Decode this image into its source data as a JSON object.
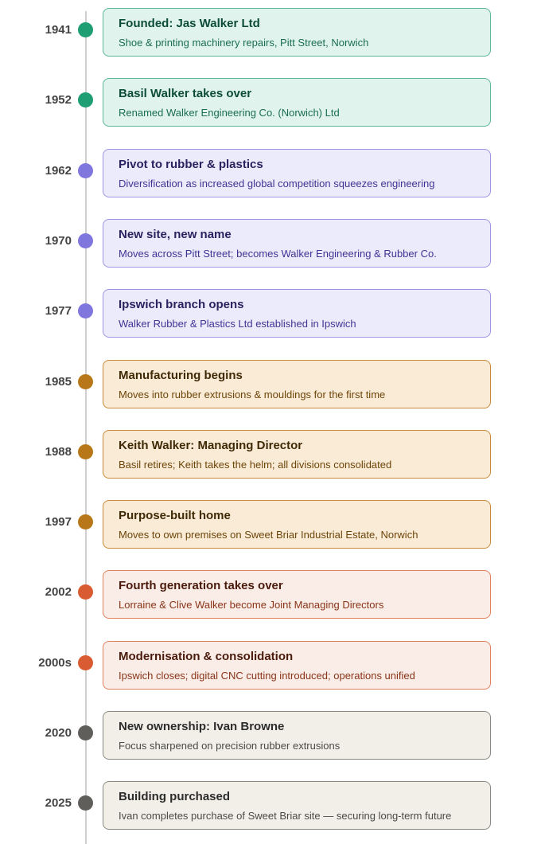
{
  "themes": {
    "green": {
      "fill": "#e0f3ec",
      "border": "#5db896",
      "title": "#0c4c38",
      "sub": "#1a6e52",
      "dot": "#1f9e74"
    },
    "purple": {
      "fill": "#ecebfb",
      "border": "#9d95e3",
      "title": "#2a2260",
      "sub": "#3f3494",
      "dot": "#7f77dd"
    },
    "amber": {
      "fill": "#faebd7",
      "border": "#c98a3a",
      "title": "#3f2a06",
      "sub": "#6e4508",
      "dot": "#b87718"
    },
    "red": {
      "fill": "#faece7",
      "border": "#e0815e",
      "title": "#4a1b0c",
      "sub": "#8a3418",
      "dot": "#d95b32"
    },
    "gray": {
      "fill": "#f1efe8",
      "border": "#8a8882",
      "title": "#2c2c2a",
      "sub": "#4a4a46",
      "dot": "#5f5e5a"
    }
  },
  "events": [
    {
      "year": "1941",
      "title": "Founded: Jas Walker Ltd",
      "desc": "Shoe & printing machinery repairs, Pitt Street, Norwich",
      "theme": "green"
    },
    {
      "year": "1952",
      "title": "Basil Walker takes over",
      "desc": "Renamed Walker Engineering Co. (Norwich) Ltd",
      "theme": "green"
    },
    {
      "year": "1962",
      "title": "Pivot to rubber & plastics",
      "desc": "Diversification as increased global competition squeezes engineering",
      "theme": "purple"
    },
    {
      "year": "1970",
      "title": "New site, new name",
      "desc": "Moves across Pitt Street; becomes Walker Engineering & Rubber Co.",
      "theme": "purple"
    },
    {
      "year": "1977",
      "title": "Ipswich branch opens",
      "desc": "Walker Rubber & Plastics Ltd established in Ipswich",
      "theme": "purple"
    },
    {
      "year": "1985",
      "title": "Manufacturing begins",
      "desc": "Moves into rubber extrusions & mouldings for the first time",
      "theme": "amber"
    },
    {
      "year": "1988",
      "title": "Keith Walker: Managing Director",
      "desc": "Basil retires; Keith takes the helm; all divisions consolidated",
      "theme": "amber"
    },
    {
      "year": "1997",
      "title": "Purpose-built home",
      "desc": "Moves to own premises on Sweet Briar Industrial Estate, Norwich",
      "theme": "amber"
    },
    {
      "year": "2002",
      "title": "Fourth generation takes over",
      "desc": "Lorraine & Clive Walker become Joint Managing Directors",
      "theme": "red"
    },
    {
      "year": "2000s",
      "title": "Modernisation & consolidation",
      "desc": "Ipswich closes; digital CNC cutting introduced; operations unified",
      "theme": "red"
    },
    {
      "year": "2020",
      "title": "New ownership: Ivan Browne",
      "desc": "Focus sharpened on precision rubber extrusions",
      "theme": "gray"
    },
    {
      "year": "2025",
      "title": "Building purchased",
      "desc": "Ivan completes purchase of Sweet Briar site — securing long-term future",
      "theme": "gray"
    }
  ]
}
